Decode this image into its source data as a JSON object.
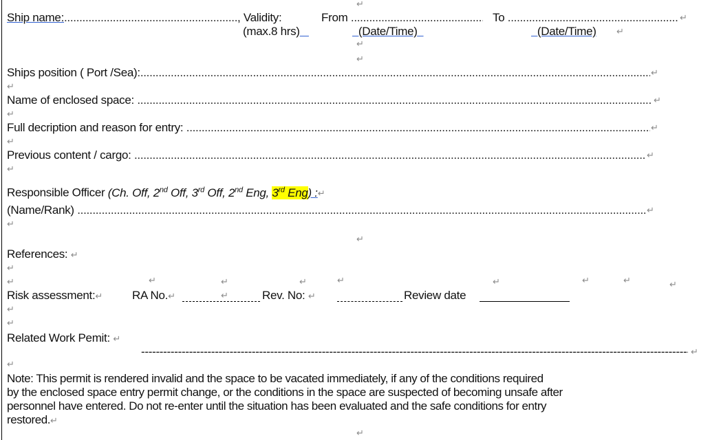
{
  "pilcrow": "↵",
  "header": {
    "ship_name_label": "Ship name:",
    "validity_label": ", Validity:",
    "validity_note": "(max.8 hrs)",
    "from_label": "From",
    "to_label": "To",
    "date_time_from": "(Date/Time)",
    "date_time_to": "(Date/Time)"
  },
  "fields": {
    "ships_position": "Ships position ( Port /Sea):",
    "enclosed_space": "Name of enclosed space:",
    "description": "Full decription and reason for entry:",
    "previous_content": "Previous content / cargo:",
    "responsible_officer": "Responsible Officer",
    "officer_options_a": "(Ch. Off, 2",
    "nd": "nd",
    "rd": "rd",
    "off_sep": " Off, 3",
    "off_sep2": " Off, 2",
    "eng_sep": " Eng, ",
    "third_eng": "3",
    "eng": " Eng",
    "officer_close": ") :",
    "name_rank": "(Name/Rank)",
    "references": "References:",
    "risk_assessment": "Risk assessment:",
    "ra_no": "RA No.",
    "rev_no": "Rev. No:",
    "review_date": "Review date",
    "related_work_permit": "Related Work Pemit:"
  },
  "note": {
    "line1": "Note: This permit is rendered invalid and the space to be vacated immediately, if any of the conditions required",
    "line2": "by the enclosed space entry permit change, or the conditions in the space are suspected of becoming unsafe after",
    "line3": "personnel have entered. Do not re-enter until the situation has been evaluated and the safe conditions for entry",
    "line4": "restored."
  }
}
